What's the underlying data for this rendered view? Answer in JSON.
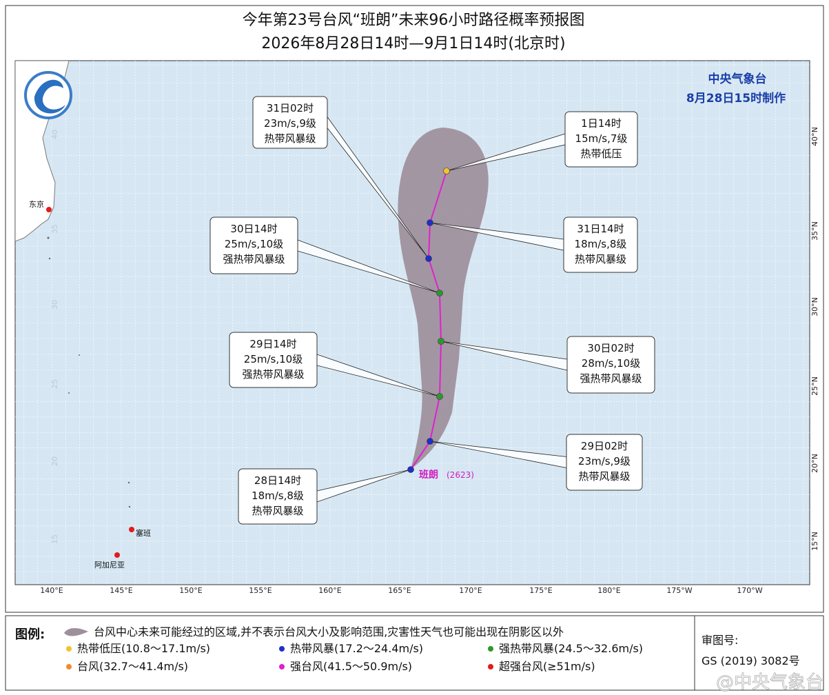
{
  "header": {
    "title": "今年第23号台风“班朗”未来96小时路径概率预报图",
    "subtitle": "2026年8月28日14时—9月1日14时(北京时)"
  },
  "agency": {
    "name": "中央气象台",
    "made": "8月28日15时制作"
  },
  "map": {
    "lon_labels": [
      "140°E",
      "145°E",
      "150°E",
      "155°E",
      "160°E",
      "165°E",
      "170°E",
      "175°E",
      "180°E",
      "175°W",
      "170°W"
    ],
    "lat_labels": [
      "40°N",
      "35°N",
      "30°N",
      "25°N",
      "20°N",
      "15°N"
    ],
    "inner_lat_labels": [
      "40",
      "35",
      "30",
      "25",
      "20",
      "15"
    ],
    "places": [
      "东京",
      "塞班",
      "阿加尼亚"
    ],
    "typhoon_name": "班朗",
    "typhoon_code": "(2623)"
  },
  "callouts": [
    {
      "time": "31日02时",
      "wind": "23m/s,9级",
      "level": "热带风暴级"
    },
    {
      "time": "1日14时",
      "wind": "15m/s,7级",
      "level": "热带低压"
    },
    {
      "time": "30日14时",
      "wind": "25m/s,10级",
      "level": "强热带风暴级"
    },
    {
      "time": "31日14时",
      "wind": "18m/s,8级",
      "level": "热带风暴级"
    },
    {
      "time": "29日14时",
      "wind": "25m/s,10级",
      "level": "强热带风暴级"
    },
    {
      "time": "30日02时",
      "wind": "28m/s,10级",
      "level": "强热带风暴级"
    },
    {
      "time": "29日02时",
      "wind": "23m/s,9级",
      "level": "热带风暴级"
    },
    {
      "time": "28日14时",
      "wind": "18m/s,8级",
      "level": "热带风暴级"
    }
  ],
  "legend": {
    "title": "图例:",
    "cone": "台风中心未来可能经过的区域,并不表示台风大小及影响范围,灾害性天气也可能出现在阴影区以外",
    "items": [
      "热带低压(10.8～17.1m/s)",
      "热带风暴(17.2～24.4m/s)",
      "强热带风暴(24.5～32.6m/s)",
      "台风(32.7～41.4m/s)",
      "强台风(41.5～50.9m/s)",
      "超强台风(≥51m/s)"
    ]
  },
  "approval": {
    "label": "审图号:",
    "code": "GS (2019) 3082号"
  },
  "watermark": "@中央气象台"
}
